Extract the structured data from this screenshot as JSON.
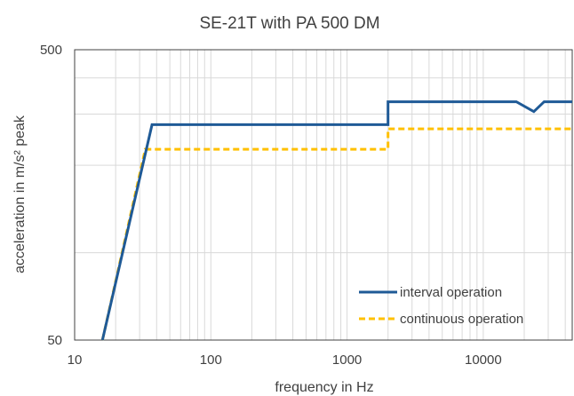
{
  "chart_data": {
    "type": "line",
    "title": "SE-21T with PA 500 DM",
    "xlabel": "frequency in Hz",
    "ylabel": "acceleration in m/s² peak",
    "x_scale": "log",
    "y_scale": "log",
    "xlim": [
      10,
      45000
    ],
    "ylim": [
      50,
      500
    ],
    "x_ticks": [
      10,
      100,
      1000,
      10000
    ],
    "x_tick_labels": [
      "10",
      "100",
      "1000",
      "10000"
    ],
    "y_ticks": [
      50,
      500
    ],
    "y_tick_labels": [
      "50",
      "500"
    ],
    "grid": true,
    "legend_position": "bottom-right",
    "colors": {
      "interval": "#1f5a96",
      "continuous": "#ffc000",
      "grid": "#d9d9d9",
      "frame": "#404040"
    },
    "series": [
      {
        "name": "interval operation",
        "style": "solid",
        "x": [
          16,
          37,
          2000,
          2000,
          17500,
          23500,
          28000,
          45000
        ],
        "y": [
          50,
          276,
          276,
          331,
          331,
          306,
          331,
          331
        ]
      },
      {
        "name": "continuous operation",
        "style": "dashed",
        "x": [
          16,
          33,
          2000,
          2000,
          45000
        ],
        "y": [
          50,
          227,
          227,
          267,
          267
        ]
      }
    ]
  }
}
